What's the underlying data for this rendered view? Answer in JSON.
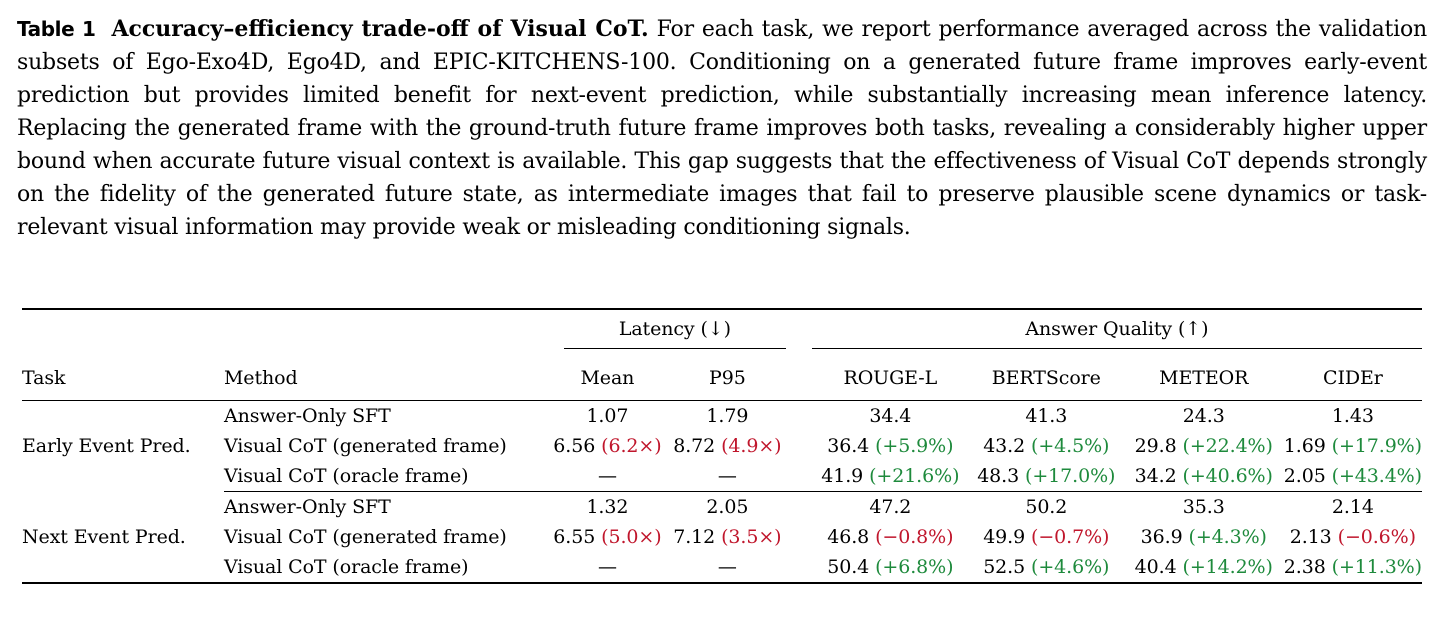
{
  "caption": {
    "label": "Table 1",
    "title": "Accuracy–efficiency trade-off of Visual CoT.",
    "text": "For each task, we report performance averaged across the validation subsets of Ego-Exo4D, Ego4D, and EPIC-KITCHENS-100. Conditioning on a generated future frame improves early-event prediction but provides limited benefit for next-event prediction, while substantially increasing mean inference latency. Replacing the generated frame with the ground-truth future frame improves both tasks, revealing a considerably higher upper bound when accurate future visual context is available. This gap suggests that the effectiveness of Visual CoT depends strongly on the fidelity of the generated future state, as intermediate images that fail to preserve plausible scene dynamics or task-relevant visual information may provide weak or misleading conditioning signals."
  },
  "table": {
    "groups": {
      "latency": "Latency (↓)",
      "quality": "Answer Quality (↑)"
    },
    "headers": {
      "task": "Task",
      "method": "Method",
      "mean": "Mean",
      "p95": "P95",
      "rouge": "ROUGE-L",
      "bertscore": "BERTScore",
      "meteor": "METEOR",
      "cider": "CIDEr"
    },
    "sections": [
      {
        "task": "Early Event Pred.",
        "rows": [
          {
            "method": "Answer-Only SFT",
            "mean": "1.07",
            "mean_d": "",
            "p95": "1.79",
            "p95_d": "",
            "rouge": "34.4",
            "rouge_d": "",
            "bert": "41.3",
            "bert_d": "",
            "meteor": "24.3",
            "meteor_d": "",
            "cider": "1.43",
            "cider_d": ""
          },
          {
            "method": "Visual CoT (generated frame)",
            "mean": "6.56",
            "mean_d": "(6.2×)",
            "p95": "8.72",
            "p95_d": "(4.9×)",
            "rouge": "36.4",
            "rouge_d": "(+5.9%)",
            "bert": "43.2",
            "bert_d": "(+4.5%)",
            "meteor": "29.8",
            "meteor_d": "(+22.4%)",
            "cider": "1.69",
            "cider_d": "(+17.9%)"
          },
          {
            "method": "Visual CoT (oracle frame)",
            "mean": "—",
            "mean_d": "",
            "p95": "—",
            "p95_d": "",
            "rouge": "41.9",
            "rouge_d": "(+21.6%)",
            "bert": "48.3",
            "bert_d": "(+17.0%)",
            "meteor": "34.2",
            "meteor_d": "(+40.6%)",
            "cider": "2.05",
            "cider_d": "(+43.4%)"
          }
        ]
      },
      {
        "task": "Next Event Pred.",
        "rows": [
          {
            "method": "Answer-Only SFT",
            "mean": "1.32",
            "mean_d": "",
            "p95": "2.05",
            "p95_d": "",
            "rouge": "47.2",
            "rouge_d": "",
            "bert": "50.2",
            "bert_d": "",
            "meteor": "35.3",
            "meteor_d": "",
            "cider": "2.14",
            "cider_d": ""
          },
          {
            "method": "Visual CoT (generated frame)",
            "mean": "6.55",
            "mean_d": "(5.0×)",
            "p95": "7.12",
            "p95_d": "(3.5×)",
            "rouge": "46.8",
            "rouge_d": "(−0.8%)",
            "bert": "49.9",
            "bert_d": "(−0.7%)",
            "meteor": "36.9",
            "meteor_d": "(+4.3%)",
            "cider": "2.13",
            "cider_d": "(−0.6%)"
          },
          {
            "method": "Visual CoT (oracle frame)",
            "mean": "—",
            "mean_d": "",
            "p95": "—",
            "p95_d": "",
            "rouge": "50.4",
            "rouge_d": "(+6.8%)",
            "bert": "52.5",
            "bert_d": "(+4.6%)",
            "meteor": "40.4",
            "meteor_d": "(+14.2%)",
            "cider": "2.38",
            "cider_d": "(+11.3%)"
          }
        ]
      }
    ],
    "colors": {
      "positive": "#1e8a3c",
      "negative": "#c0162c"
    }
  }
}
